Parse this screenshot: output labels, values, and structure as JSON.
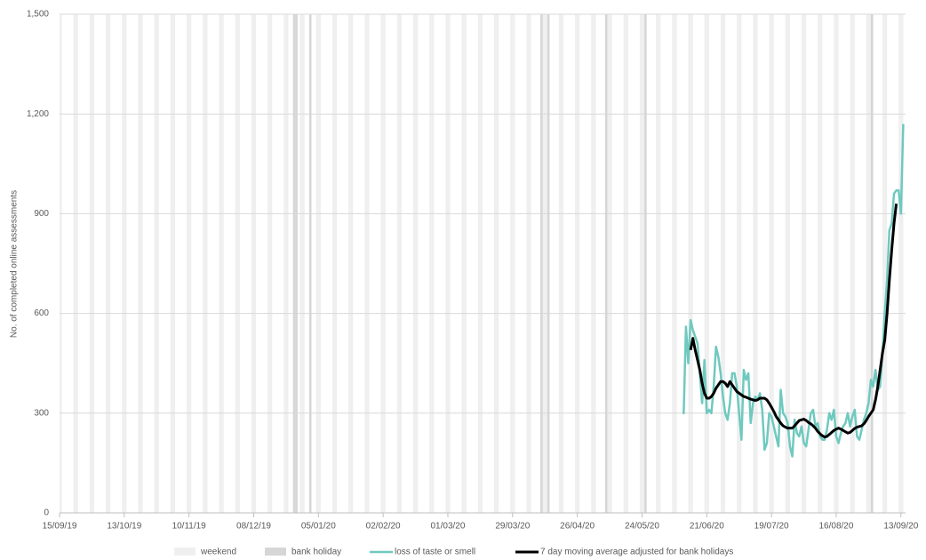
{
  "chart_data": {
    "type": "line",
    "y_label": "No. of completed online assessments",
    "xlim": [
      "15/09/19",
      "15/09/20"
    ],
    "xticks": [
      "15/09/19",
      "13/10/19",
      "10/11/19",
      "08/12/19",
      "05/01/20",
      "02/02/20",
      "01/03/20",
      "29/03/20",
      "26/04/20",
      "24/05/20",
      "21/06/20",
      "19/07/20",
      "16/08/20",
      "13/09/20"
    ],
    "ylim": [
      0,
      1500
    ],
    "yticks": [
      0,
      300,
      600,
      900,
      {
        "value": 1200,
        "label": "1,200"
      },
      {
        "value": 1500,
        "label": "1,500"
      }
    ],
    "grid": true,
    "legend": "bottom",
    "weekend": {
      "name": "weekend",
      "color": "#efefef"
    },
    "bank_holiday": {
      "name": "bank holiday",
      "color": "#d6d6d6",
      "dates": [
        "25/12/19",
        "26/12/19",
        "01/01/20",
        "10/04/20",
        "13/04/20",
        "08/05/20",
        "25/05/20",
        "31/08/20"
      ]
    },
    "x": [
      "11/06/20",
      "12/06/20",
      "13/06/20",
      "14/06/20",
      "15/06/20",
      "16/06/20",
      "17/06/20",
      "18/06/20",
      "19/06/20",
      "20/06/20",
      "21/06/20",
      "22/06/20",
      "23/06/20",
      "24/06/20",
      "25/06/20",
      "26/06/20",
      "27/06/20",
      "28/06/20",
      "29/06/20",
      "30/06/20",
      "01/07/20",
      "02/07/20",
      "03/07/20",
      "04/07/20",
      "05/07/20",
      "06/07/20",
      "07/07/20",
      "08/07/20",
      "09/07/20",
      "10/07/20",
      "11/07/20",
      "12/07/20",
      "13/07/20",
      "14/07/20",
      "15/07/20",
      "16/07/20",
      "17/07/20",
      "18/07/20",
      "19/07/20",
      "20/07/20",
      "21/07/20",
      "22/07/20",
      "23/07/20",
      "24/07/20",
      "25/07/20",
      "26/07/20",
      "27/07/20",
      "28/07/20",
      "29/07/20",
      "30/07/20",
      "31/07/20",
      "01/08/20",
      "02/08/20",
      "03/08/20",
      "04/08/20",
      "05/08/20",
      "06/08/20",
      "07/08/20",
      "08/08/20",
      "09/08/20",
      "10/08/20",
      "11/08/20",
      "12/08/20",
      "13/08/20",
      "14/08/20",
      "15/08/20",
      "16/08/20",
      "17/08/20",
      "18/08/20",
      "19/08/20",
      "20/08/20",
      "21/08/20",
      "22/08/20",
      "23/08/20",
      "24/08/20",
      "25/08/20",
      "26/08/20",
      "27/08/20",
      "28/08/20",
      "29/08/20",
      "30/08/20",
      "31/08/20",
      "01/09/20",
      "02/09/20",
      "03/09/20",
      "04/09/20",
      "05/09/20",
      "06/09/20",
      "07/09/20",
      "08/09/20",
      "09/09/20",
      "10/09/20",
      "11/09/20",
      "12/09/20",
      "13/09/20",
      "14/09/20"
    ],
    "series": [
      {
        "name": "loss of taste or smell",
        "color": "#6fc9bf",
        "width": 2.5,
        "values": [
          297,
          560,
          450,
          580,
          550,
          530,
          510,
          420,
          330,
          460,
          300,
          310,
          300,
          380,
          500,
          470,
          420,
          350,
          300,
          280,
          330,
          420,
          420,
          380,
          300,
          220,
          430,
          400,
          420,
          270,
          330,
          350,
          340,
          360,
          310,
          190,
          210,
          300,
          290,
          260,
          230,
          200,
          370,
          300,
          290,
          270,
          200,
          170,
          280,
          240,
          230,
          260,
          210,
          200,
          250,
          300,
          310,
          260,
          270,
          230,
          220,
          220,
          250,
          300,
          280,
          310,
          230,
          210,
          240,
          260,
          270,
          300,
          260,
          290,
          310,
          230,
          220,
          250,
          280,
          300,
          330,
          400,
          380,
          430,
          370,
          380,
          480,
          600,
          700,
          850,
          870,
          960,
          970,
          970,
          900,
          1170
        ]
      },
      {
        "name": "7 day moving average adjusted for bank holidays",
        "color": "#000000",
        "width": 3,
        "values": [
          null,
          null,
          null,
          490,
          525,
          490,
          460,
          430,
          390,
          360,
          345,
          345,
          350,
          360,
          375,
          385,
          395,
          395,
          390,
          380,
          395,
          385,
          375,
          365,
          360,
          355,
          350,
          348,
          345,
          342,
          340,
          338,
          340,
          345,
          345,
          345,
          340,
          330,
          318,
          305,
          290,
          280,
          270,
          262,
          258,
          255,
          255,
          255,
          262,
          270,
          278,
          280,
          282,
          278,
          272,
          268,
          262,
          255,
          245,
          238,
          232,
          228,
          230,
          236,
          242,
          248,
          252,
          255,
          252,
          248,
          244,
          240,
          242,
          248,
          254,
          258,
          260,
          262,
          268,
          278,
          290,
          300,
          310,
          340,
          380,
          430,
          480,
          520,
          600,
          700,
          790,
          870,
          930,
          null,
          null,
          null
        ]
      }
    ]
  }
}
